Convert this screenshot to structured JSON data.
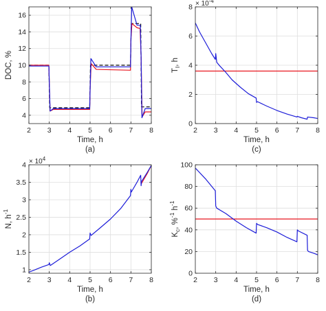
{
  "chart_data": [
    {
      "id": "a",
      "type": "line",
      "caption": "(a)",
      "xlabel": "Time, h",
      "ylabel": "DOC, %",
      "xlim": [
        2,
        8
      ],
      "ylim": [
        3,
        17
      ],
      "xticks": [
        2,
        3,
        4,
        5,
        6,
        7,
        8
      ],
      "yticks": [
        4,
        6,
        8,
        10,
        12,
        14,
        16
      ],
      "grid": true,
      "series": [
        {
          "color": "#000000",
          "dash": "5,3",
          "x": [
            2,
            2.98,
            3.02,
            4.98,
            5.02,
            6.98,
            7.02,
            7.48,
            7.52,
            8
          ],
          "y": [
            10,
            10,
            4.9,
            4.9,
            10,
            10,
            15,
            15,
            5,
            5
          ]
        },
        {
          "color": "#e8141e",
          "x": [
            2,
            2.98,
            3.0,
            3.04,
            3.2,
            4.98,
            5.0,
            5.05,
            5.3,
            6.98,
            7.0,
            7.05,
            7.3,
            7.45,
            7.5,
            7.55,
            7.7,
            8
          ],
          "y": [
            10,
            10,
            8.0,
            4.5,
            4.7,
            4.7,
            7.0,
            10.2,
            9.5,
            9.4,
            13.0,
            15.0,
            14.5,
            14.4,
            11.0,
            3.8,
            4.4,
            4.4
          ]
        },
        {
          "color": "#1c1cd8",
          "x": [
            2,
            2.98,
            3.0,
            3.04,
            3.2,
            4.98,
            5.0,
            5.04,
            5.3,
            6.98,
            7.0,
            7.04,
            7.3,
            7.46,
            7.5,
            7.54,
            7.7,
            8
          ],
          "y": [
            9.9,
            9.9,
            8.0,
            4.5,
            4.8,
            4.8,
            7.0,
            10.8,
            9.8,
            9.8,
            13.0,
            17.0,
            14.8,
            14.8,
            11.0,
            3.7,
            4.8,
            4.8
          ]
        }
      ]
    },
    {
      "id": "c",
      "type": "line",
      "caption": "(c)",
      "xlabel": "Time, h",
      "ylabel": "T",
      "ylabel_sub": "I",
      "ylabel_suffix": ", h",
      "exp_base": "× 10",
      "exp_power": "-4",
      "xlim": [
        2,
        8
      ],
      "ylim": [
        0,
        8
      ],
      "xticks": [
        2,
        3,
        4,
        5,
        6,
        7,
        8
      ],
      "yticks": [
        0,
        2,
        4,
        6,
        8
      ],
      "grid": true,
      "series": [
        {
          "color": "#e8141e",
          "x": [
            2,
            8
          ],
          "y": [
            3.6,
            3.6
          ]
        },
        {
          "color": "#1c1cd8",
          "x": [
            2,
            2.2,
            2.4,
            2.6,
            2.8,
            2.98,
            3.0,
            3.05,
            3.2,
            3.5,
            3.8,
            4.2,
            4.6,
            4.98,
            5.0,
            5.05,
            5.5,
            6.0,
            6.5,
            6.98,
            7.0,
            7.2,
            7.48,
            7.5,
            7.8,
            8
          ],
          "y": [
            6.9,
            6.3,
            5.8,
            5.3,
            4.8,
            4.4,
            4.8,
            4.2,
            3.95,
            3.5,
            3.0,
            2.5,
            2.05,
            1.75,
            1.45,
            1.5,
            1.2,
            0.9,
            0.65,
            0.45,
            0.5,
            0.4,
            0.3,
            0.45,
            0.4,
            0.35
          ]
        }
      ]
    },
    {
      "id": "b",
      "type": "line",
      "caption": "(b)",
      "xlabel": "Time, h",
      "ylabel": "N, h",
      "ylabel_sup": "-1",
      "exp_base": "× 10",
      "exp_power": "4",
      "xlim": [
        2,
        8
      ],
      "ylim": [
        0.9,
        4
      ],
      "xticks": [
        2,
        3,
        4,
        5,
        6,
        7,
        8
      ],
      "yticks": [
        1,
        1.5,
        2,
        2.5,
        3,
        3.5,
        4
      ],
      "ytick_labels": [
        "1",
        "1.5",
        "2",
        "2.5",
        "3",
        "3.5",
        "4"
      ],
      "grid": true,
      "series": [
        {
          "color": "#e8141e",
          "x": [
            7.5,
            7.8,
            8
          ],
          "y": [
            3.45,
            3.75,
            3.98
          ]
        },
        {
          "color": "#1c1cd8",
          "x": [
            2,
            2.3,
            2.6,
            2.98,
            3.0,
            3.05,
            3.5,
            4.0,
            4.5,
            4.98,
            5.0,
            5.05,
            5.5,
            6.0,
            6.5,
            6.98,
            7.0,
            7.02,
            7.3,
            7.48,
            7.5,
            7.52,
            7.8,
            8
          ],
          "y": [
            0.93,
            1.0,
            1.07,
            1.15,
            1.2,
            1.12,
            1.3,
            1.5,
            1.68,
            1.88,
            2.05,
            1.98,
            2.2,
            2.45,
            2.75,
            3.12,
            3.3,
            3.22,
            3.5,
            3.7,
            3.4,
            3.52,
            3.78,
            3.98
          ]
        }
      ]
    },
    {
      "id": "d",
      "type": "line",
      "caption": "(d)",
      "xlabel": "Time, h",
      "ylabel": "K",
      "ylabel_sub": "c",
      "ylabel_suffix": ", %",
      "ylabel_sup": "-1",
      "ylabel_suffix2": " h",
      "ylabel_sup2": "-1",
      "xlim": [
        2,
        8
      ],
      "ylim": [
        0,
        100
      ],
      "xticks": [
        2,
        3,
        4,
        5,
        6,
        7,
        8
      ],
      "yticks": [
        0,
        20,
        40,
        60,
        80,
        100
      ],
      "grid": true,
      "series": [
        {
          "color": "#e8141e",
          "x": [
            2,
            8
          ],
          "y": [
            50,
            50
          ]
        },
        {
          "color": "#1c1cd8",
          "x": [
            2,
            2.5,
            2.98,
            3.0,
            3.05,
            3.5,
            4.0,
            4.5,
            4.98,
            5.0,
            5.05,
            5.5,
            6.0,
            6.5,
            6.98,
            7.0,
            7.05,
            7.48,
            7.5,
            7.55,
            7.8,
            8
          ],
          "y": [
            97,
            87,
            76,
            62,
            60,
            55,
            48,
            42,
            37,
            46,
            45,
            42,
            38,
            33,
            29,
            40,
            39,
            35,
            21,
            20,
            18.5,
            17
          ]
        }
      ]
    }
  ]
}
